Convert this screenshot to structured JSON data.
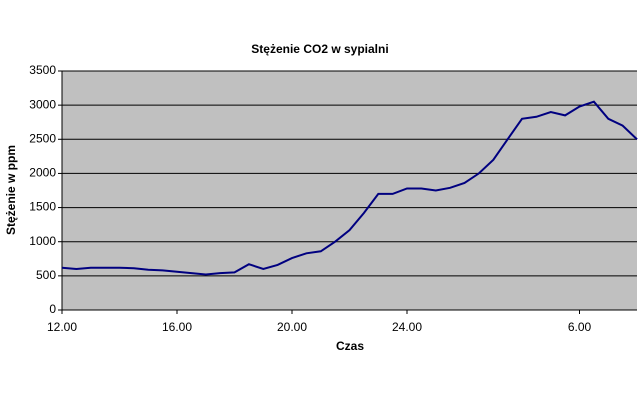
{
  "chart_data": {
    "type": "line",
    "title": "Stężenie CO2 w sypialni",
    "x_label": "Czas",
    "y_label": "Stężenie w ppm",
    "categories": [
      "12.00",
      null,
      null,
      null,
      null,
      null,
      null,
      null,
      "16.00",
      null,
      null,
      null,
      null,
      null,
      null,
      null,
      "20.00",
      null,
      null,
      null,
      null,
      null,
      null,
      null,
      "24.00",
      null,
      null,
      null,
      null,
      null,
      null,
      null,
      null,
      null,
      null,
      null,
      "6.00",
      null,
      null,
      null,
      null
    ],
    "values": [
      620,
      600,
      620,
      620,
      620,
      610,
      590,
      580,
      560,
      540,
      520,
      540,
      550,
      670,
      600,
      660,
      760,
      830,
      860,
      1000,
      1170,
      1420,
      1700,
      1700,
      1780,
      1780,
      1750,
      1790,
      1860,
      2000,
      2200,
      2500,
      2800,
      2830,
      2900,
      2850,
      2980,
      3050,
      2800,
      2700,
      2500
    ],
    "color": "#000080",
    "ylim": [
      0,
      3500
    ],
    "yticks": [
      0,
      500,
      1000,
      1500,
      2000,
      2500,
      3000,
      3500
    ],
    "grid": true
  }
}
